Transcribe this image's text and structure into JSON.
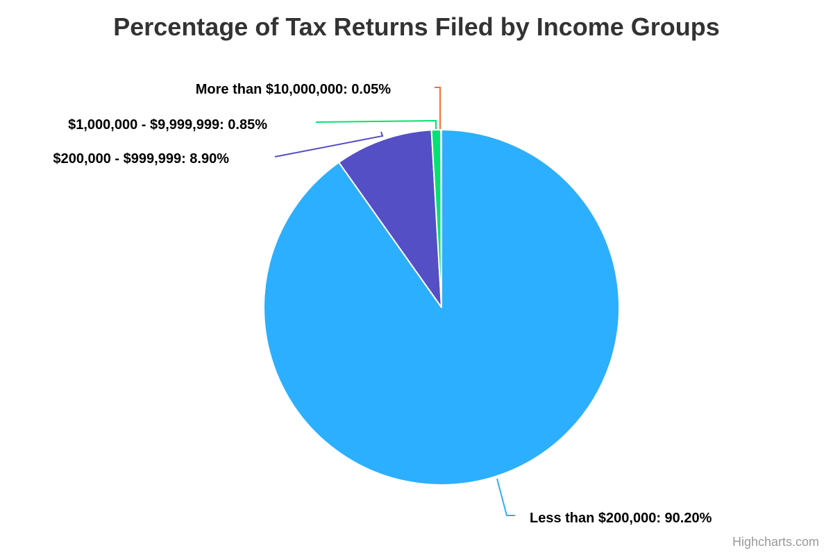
{
  "chart_data": {
    "type": "pie",
    "title": "Percentage of Tax Returns Filed by Income Groups",
    "unit": "%",
    "series": [
      {
        "slices": [
          {
            "label": "Less than $200,000",
            "value": 90.2,
            "display": "90.20%",
            "color": "#2caffe"
          },
          {
            "label": "$200,000 - $999,999",
            "value": 8.9,
            "display": "8.90%",
            "color": "#544fc5"
          },
          {
            "label": "$1,000,000 - $9,999,999",
            "value": 0.85,
            "display": "0.85%",
            "color": "#00e272"
          },
          {
            "label": "More than $10,000,000",
            "value": 0.05,
            "display": "0.05%",
            "color": "#fe6a35"
          }
        ]
      }
    ],
    "legend": "none",
    "credits": "Highcharts.com"
  }
}
